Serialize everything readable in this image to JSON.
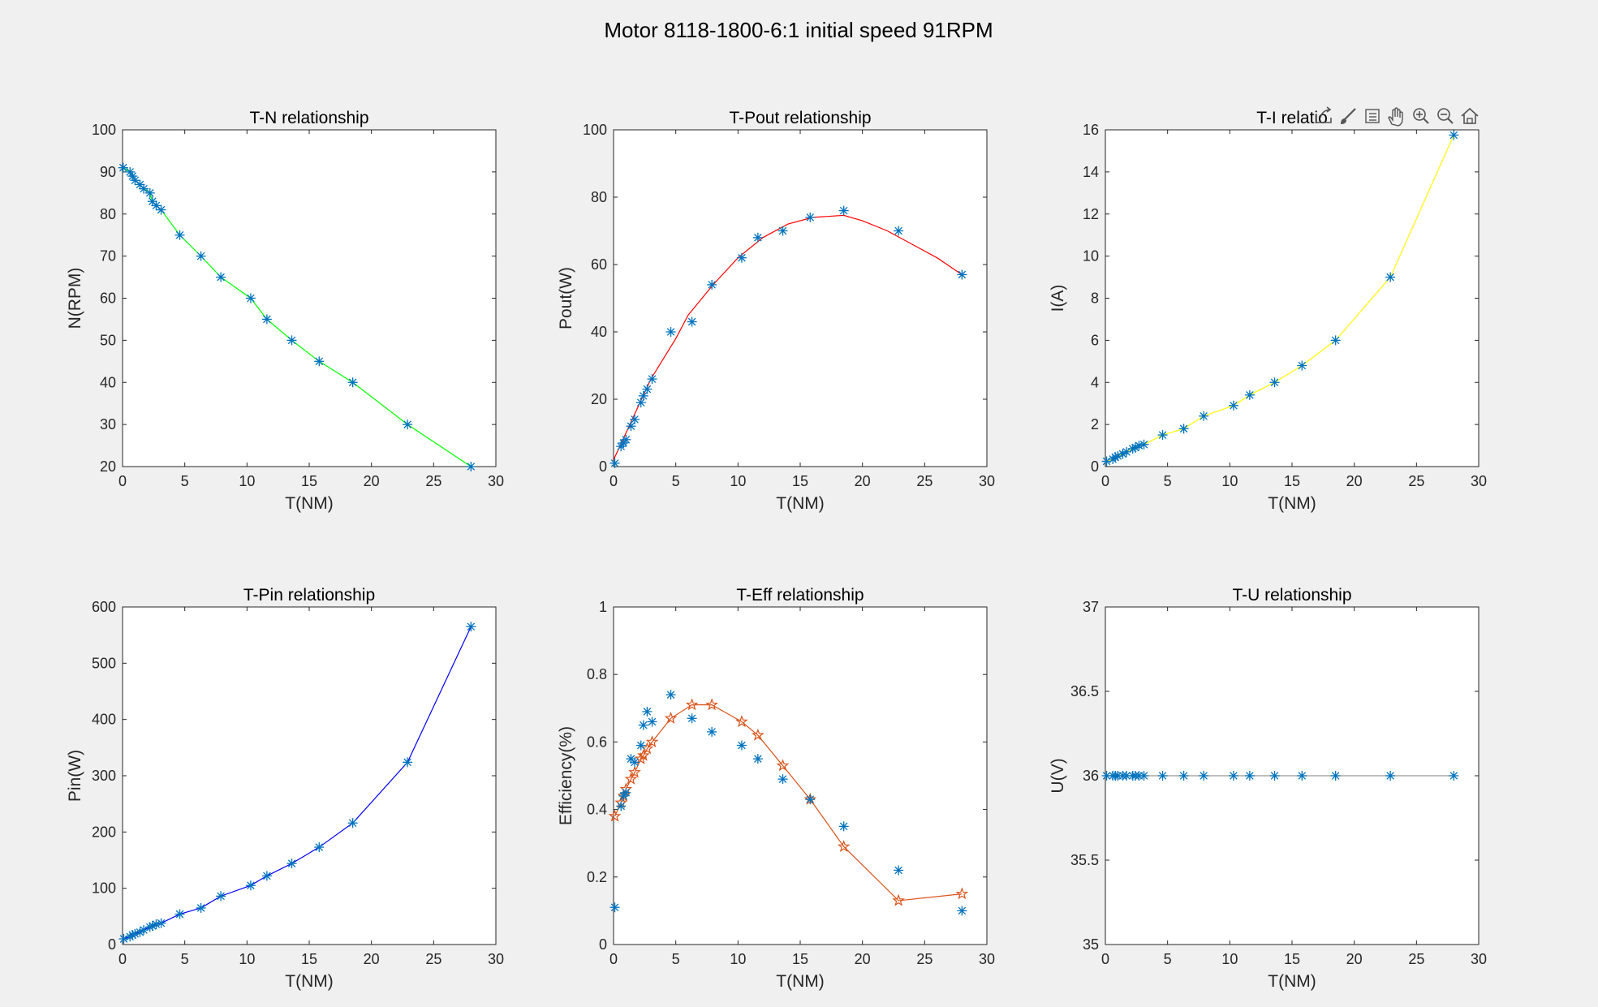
{
  "figure": {
    "title": "Motor 8118-1800-6:1 initial speed 91RPM"
  },
  "toolbar": {
    "buttons": [
      {
        "name": "export-icon"
      },
      {
        "name": "brush-icon"
      },
      {
        "name": "datatip-icon"
      },
      {
        "name": "pan-hand-icon"
      },
      {
        "name": "zoom-in-icon"
      },
      {
        "name": "zoom-out-icon"
      },
      {
        "name": "home-icon"
      }
    ]
  },
  "chart_data": [
    {
      "id": "tn",
      "type": "line",
      "title": "T-N relationship",
      "xlabel": "T(NM)",
      "ylabel": "N(RPM)",
      "xlim": [
        0,
        30
      ],
      "ylim": [
        20,
        100
      ],
      "xticks": [
        0,
        5,
        10,
        15,
        20,
        25,
        30
      ],
      "yticks": [
        20,
        30,
        40,
        50,
        60,
        70,
        80,
        90,
        100
      ],
      "line_color": "#00ff00",
      "marker_color": "#0072bd",
      "x": [
        0.05,
        0.6,
        0.8,
        1.0,
        1.4,
        1.7,
        2.2,
        2.4,
        2.7,
        3.1,
        4.6,
        6.3,
        7.9,
        10.3,
        11.6,
        13.6,
        15.8,
        18.5,
        22.9,
        28.0
      ],
      "y": [
        91,
        90,
        89,
        88,
        87,
        86,
        85,
        83,
        82,
        81,
        75,
        70,
        65,
        60,
        55,
        50,
        45,
        40,
        30,
        20
      ]
    },
    {
      "id": "tpout",
      "type": "line",
      "title": "T-Pout relationship",
      "xlabel": "T(NM)",
      "ylabel": "Pout(W)",
      "xlim": [
        0,
        30
      ],
      "ylim": [
        0,
        100
      ],
      "xticks": [
        0,
        5,
        10,
        15,
        20,
        25,
        30
      ],
      "yticks": [
        0,
        20,
        40,
        60,
        80,
        100
      ],
      "line_color": "#ff0000",
      "marker_color": "#0072bd",
      "x": [
        0.1,
        0.6,
        0.8,
        1.0,
        1.4,
        1.7,
        2.2,
        2.4,
        2.7,
        3.1,
        4.6,
        6.3,
        7.9,
        10.3,
        11.6,
        13.6,
        15.8,
        18.5,
        22.9,
        28.0
      ],
      "y": [
        1,
        6,
        7,
        8,
        12,
        14,
        19,
        21,
        23,
        26,
        40,
        43,
        54,
        62,
        68,
        70,
        74,
        76,
        70,
        57
      ],
      "fit_x": [
        0,
        1,
        2,
        3,
        4,
        5,
        6,
        8,
        10,
        12,
        14,
        16,
        18.5,
        20,
        22,
        24,
        26,
        28
      ],
      "fit_y": [
        2,
        10,
        18,
        26,
        32,
        38,
        45,
        54,
        62,
        68,
        72,
        74,
        74.6,
        73,
        70,
        66,
        62,
        57
      ]
    },
    {
      "id": "ti",
      "type": "line",
      "title": "T-I relatio",
      "xlabel": "T(NM)",
      "ylabel": "I(A)",
      "xlim": [
        0,
        30
      ],
      "ylim": [
        0,
        16
      ],
      "xticks": [
        0,
        5,
        10,
        15,
        20,
        25,
        30
      ],
      "yticks": [
        0,
        2,
        4,
        6,
        8,
        10,
        12,
        14,
        16
      ],
      "line_color": "#ffff00",
      "marker_color": "#0072bd",
      "x": [
        0.1,
        0.6,
        0.8,
        1.0,
        1.4,
        1.7,
        2.2,
        2.4,
        2.7,
        3.1,
        4.6,
        6.3,
        7.9,
        10.3,
        11.6,
        13.6,
        15.8,
        18.5,
        22.9,
        28.0
      ],
      "y": [
        0.25,
        0.35,
        0.45,
        0.5,
        0.6,
        0.7,
        0.85,
        0.9,
        1.0,
        1.05,
        1.5,
        1.8,
        2.4,
        2.9,
        3.4,
        4.0,
        4.8,
        6.0,
        9.0,
        15.75
      ]
    },
    {
      "id": "tpin",
      "type": "line",
      "title": "T-Pin relationship",
      "xlabel": "T(NM)",
      "ylabel": "Pin(W)",
      "xlim": [
        0,
        30
      ],
      "ylim": [
        0,
        600
      ],
      "xticks": [
        0,
        5,
        10,
        15,
        20,
        25,
        30
      ],
      "yticks": [
        0,
        100,
        200,
        300,
        400,
        500,
        600
      ],
      "line_color": "#0000ff",
      "marker_color": "#0072bd",
      "x": [
        0.1,
        0.6,
        0.8,
        1.0,
        1.4,
        1.7,
        2.2,
        2.4,
        2.7,
        3.1,
        4.6,
        6.3,
        7.9,
        10.3,
        11.6,
        13.6,
        15.8,
        18.5,
        22.9,
        28.0
      ],
      "y": [
        10,
        14,
        17,
        19,
        22,
        26,
        31,
        33,
        36,
        38,
        54,
        65,
        86,
        105,
        122,
        144,
        173,
        216,
        324,
        565
      ]
    },
    {
      "id": "teff",
      "type": "line",
      "title": "T-Eff relationship",
      "xlabel": "T(NM)",
      "ylabel": "Efficiency(%)",
      "xlim": [
        0,
        30
      ],
      "ylim": [
        0,
        1
      ],
      "xticks": [
        0,
        5,
        10,
        15,
        20,
        25,
        30
      ],
      "yticks": [
        0,
        0.2,
        0.4,
        0.6,
        0.8,
        1
      ],
      "line_color": "#d95319",
      "marker_color": "#0072bd",
      "x": [
        0.1,
        0.6,
        0.8,
        1.0,
        1.4,
        1.7,
        2.2,
        2.4,
        2.7,
        3.1,
        4.6,
        6.3,
        7.9,
        10.3,
        11.6,
        13.6,
        15.8,
        18.5,
        22.9,
        28.0
      ],
      "y": [
        0.11,
        0.41,
        0.44,
        0.45,
        0.55,
        0.54,
        0.59,
        0.65,
        0.69,
        0.66,
        0.74,
        0.67,
        0.63,
        0.59,
        0.55,
        0.49,
        0.43,
        0.35,
        0.22,
        0.1
      ],
      "fit_x": [
        0.1,
        0.6,
        0.8,
        1.0,
        1.4,
        1.7,
        2.2,
        2.4,
        2.7,
        3.1,
        4.6,
        6.3,
        7.9,
        10.3,
        11.6,
        13.6,
        15.8,
        18.5,
        22.9,
        28.0
      ],
      "fit_y": [
        0.38,
        0.42,
        0.44,
        0.46,
        0.49,
        0.51,
        0.55,
        0.56,
        0.58,
        0.6,
        0.67,
        0.71,
        0.71,
        0.66,
        0.62,
        0.53,
        0.43,
        0.29,
        0.13,
        0.15
      ]
    },
    {
      "id": "tu",
      "type": "line",
      "title": "T-U relationship",
      "xlabel": "T(NM)",
      "ylabel": "U(V)",
      "xlim": [
        0,
        30
      ],
      "ylim": [
        35,
        37
      ],
      "xticks": [
        0,
        5,
        10,
        15,
        20,
        25,
        30
      ],
      "yticks": [
        35,
        35.5,
        36,
        36.5,
        37
      ],
      "line_color": "#999999",
      "marker_color": "#0072bd",
      "x": [
        0.1,
        0.6,
        0.8,
        1.0,
        1.4,
        1.7,
        2.2,
        2.4,
        2.7,
        3.1,
        4.6,
        6.3,
        7.9,
        10.3,
        11.6,
        13.6,
        15.8,
        18.5,
        22.9,
        28.0
      ],
      "y": [
        36,
        36,
        36,
        36,
        36,
        36,
        36,
        36,
        36,
        36,
        36,
        36,
        36,
        36,
        36,
        36,
        36,
        36,
        36,
        36
      ]
    }
  ]
}
